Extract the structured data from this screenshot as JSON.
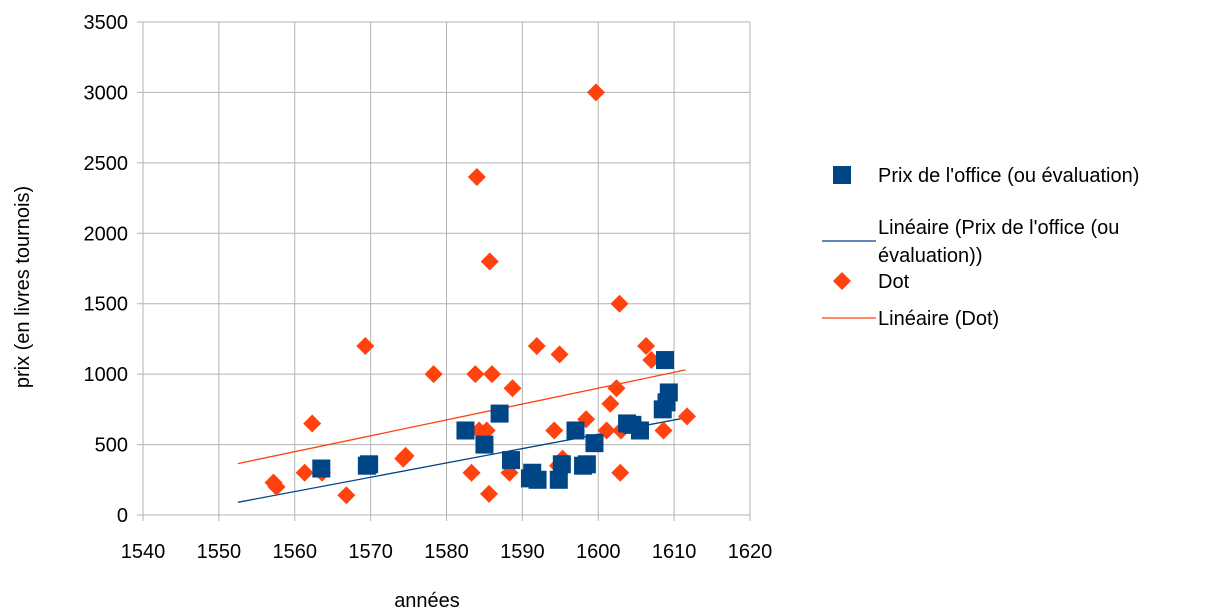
{
  "chart_data": {
    "type": "scatter",
    "title": "",
    "xlabel": "années",
    "ylabel": "prix (en livres tournois)",
    "xlim": [
      1540,
      1620
    ],
    "ylim": [
      0,
      3500
    ],
    "xticks": [
      1540,
      1550,
      1560,
      1570,
      1580,
      1590,
      1600,
      1610,
      1620
    ],
    "yticks": [
      0,
      500,
      1000,
      1500,
      2000,
      2500,
      3000,
      3500
    ],
    "grid": "vertical and horizontal major gridlines",
    "legend_position": "right",
    "series": [
      {
        "name": "Prix de l'office (ou évaluation)",
        "marker": "square",
        "color": "#004586",
        "points": [
          [
            1563.5,
            330
          ],
          [
            1569.5,
            350
          ],
          [
            1569.8,
            360
          ],
          [
            1582.5,
            600
          ],
          [
            1585.0,
            500
          ],
          [
            1587.0,
            720
          ],
          [
            1588.5,
            390
          ],
          [
            1591.0,
            260
          ],
          [
            1591.3,
            300
          ],
          [
            1592.0,
            250
          ],
          [
            1594.8,
            250
          ],
          [
            1595.2,
            360
          ],
          [
            1597.0,
            600
          ],
          [
            1598.0,
            350
          ],
          [
            1598.5,
            360
          ],
          [
            1599.5,
            510
          ],
          [
            1603.8,
            650
          ],
          [
            1604.5,
            640
          ],
          [
            1605.5,
            600
          ],
          [
            1608.5,
            750
          ],
          [
            1608.8,
            1100
          ],
          [
            1609.0,
            800
          ],
          [
            1609.3,
            870
          ]
        ]
      },
      {
        "name": "Dot",
        "marker": "diamond",
        "color": "#ff420e",
        "points": [
          [
            1557.2,
            230
          ],
          [
            1557.6,
            200
          ],
          [
            1561.3,
            300
          ],
          [
            1562.3,
            650
          ],
          [
            1563.6,
            300
          ],
          [
            1566.8,
            140
          ],
          [
            1569.3,
            1200
          ],
          [
            1574.3,
            400
          ],
          [
            1574.6,
            420
          ],
          [
            1578.3,
            1000
          ],
          [
            1583.3,
            300
          ],
          [
            1583.8,
            1000
          ],
          [
            1584.0,
            2400
          ],
          [
            1584.3,
            600
          ],
          [
            1585.3,
            600
          ],
          [
            1585.6,
            150
          ],
          [
            1585.7,
            1800
          ],
          [
            1586.0,
            1000
          ],
          [
            1588.3,
            300
          ],
          [
            1588.7,
            900
          ],
          [
            1591.9,
            1200
          ],
          [
            1594.2,
            600
          ],
          [
            1594.7,
            350
          ],
          [
            1594.9,
            1140
          ],
          [
            1595.3,
            400
          ],
          [
            1598.4,
            680
          ],
          [
            1599.7,
            3000
          ],
          [
            1601.1,
            600
          ],
          [
            1601.6,
            790
          ],
          [
            1602.4,
            900
          ],
          [
            1602.8,
            1500
          ],
          [
            1602.9,
            300
          ],
          [
            1603.0,
            600
          ],
          [
            1606.3,
            1200
          ],
          [
            1607.0,
            1100
          ],
          [
            1608.6,
            600
          ],
          [
            1611.7,
            700
          ]
        ]
      }
    ],
    "trendlines": [
      {
        "name": "Linéaire (Prix de l'office (ou évaluation))",
        "type": "linear",
        "color": "#004586",
        "x": [
          1552.5,
          1611.5
        ],
        "y": [
          90,
          690
        ]
      },
      {
        "name": "Linéaire (Dot)",
        "type": "linear",
        "color": "#ff420e",
        "x": [
          1552.5,
          1611.5
        ],
        "y": [
          365,
          1030
        ]
      }
    ],
    "legend": [
      {
        "symbol": "square",
        "color": "#004586",
        "text_lines": [
          "Prix de l'office (ou évaluation)"
        ]
      },
      {
        "symbol": "line",
        "color": "#004586",
        "text_lines": [
          "Linéaire (Prix de l'office (ou",
          "évaluation))"
        ]
      },
      {
        "symbol": "diamond",
        "color": "#ff420e",
        "text_lines": [
          "Dot"
        ]
      },
      {
        "symbol": "line",
        "color": "#ff420e",
        "text_lines": [
          "Linéaire (Dot)"
        ]
      }
    ],
    "colors": {
      "grid": "#b3b3b3",
      "axis": "#b3b3b3",
      "text": "#000000"
    }
  }
}
